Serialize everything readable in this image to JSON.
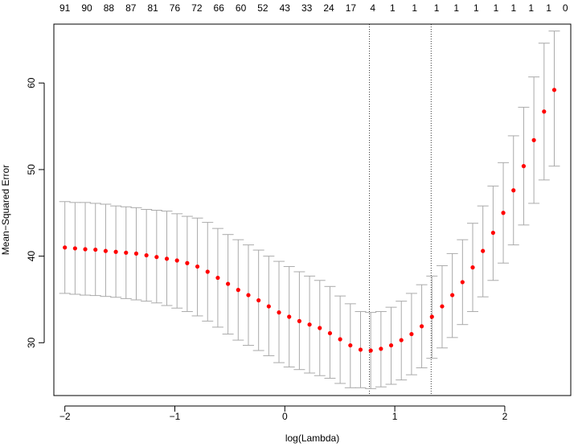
{
  "chart_data": {
    "type": "scatter",
    "title": "",
    "xlabel": "log(Lambda)",
    "ylabel": "Mean−Squared Error",
    "xlim": [
      -2.1,
      2.6
    ],
    "ylim": [
      23.9,
      66.8
    ],
    "x_ticks": [
      -2,
      -1,
      0,
      1,
      2
    ],
    "x_tick_labels": [
      "−2",
      "−1",
      "0",
      "1",
      "2"
    ],
    "y_ticks": [
      30,
      40,
      50,
      60
    ],
    "y_tick_labels": [
      "30",
      "40",
      "50",
      "60"
    ],
    "top_axis_labels": [
      "91",
      "90",
      "88",
      "87",
      "81",
      "76",
      "72",
      "66",
      "60",
      "52",
      "43",
      "33",
      "24",
      "17",
      "4",
      "1",
      "1",
      "1",
      "1",
      "1",
      "1",
      "1",
      "1",
      "1",
      "0"
    ],
    "top_axis_label_positions": [
      -2.0,
      -1.8,
      -1.6,
      -1.4,
      -1.2,
      -1.0,
      -0.8,
      -0.6,
      -0.4,
      -0.2,
      0.0,
      0.2,
      0.4,
      0.6,
      0.8,
      0.98,
      1.18,
      1.38,
      1.56,
      1.74,
      1.92,
      2.08,
      2.24,
      2.4,
      2.55
    ],
    "vlines": [
      0.77,
      1.33
    ],
    "grid": false,
    "point_color": "#ff0000",
    "errorbar_color": "#aaaaaa",
    "points": [
      {
        "x": -2.0,
        "y": 41.0,
        "lo": 35.7,
        "hi": 46.3
      },
      {
        "x": -1.9,
        "y": 40.9,
        "lo": 35.6,
        "hi": 46.2
      },
      {
        "x": -1.8,
        "y": 40.8,
        "lo": 35.5,
        "hi": 46.2
      },
      {
        "x": -1.71,
        "y": 40.75,
        "lo": 35.45,
        "hi": 46.1
      },
      {
        "x": -1.61,
        "y": 40.6,
        "lo": 35.35,
        "hi": 46.0
      },
      {
        "x": -1.51,
        "y": 40.5,
        "lo": 35.25,
        "hi": 45.8
      },
      {
        "x": -1.41,
        "y": 40.4,
        "lo": 35.1,
        "hi": 45.7
      },
      {
        "x": -1.31,
        "y": 40.3,
        "lo": 34.95,
        "hi": 45.6
      },
      {
        "x": -1.21,
        "y": 40.1,
        "lo": 34.8,
        "hi": 45.4
      },
      {
        "x": -1.11,
        "y": 39.9,
        "lo": 34.6,
        "hi": 45.3
      },
      {
        "x": -1.01,
        "y": 39.7,
        "lo": 34.3,
        "hi": 45.2
      },
      {
        "x": -0.91,
        "y": 39.5,
        "lo": 34.0,
        "hi": 44.9
      },
      {
        "x": -0.81,
        "y": 39.2,
        "lo": 33.6,
        "hi": 44.6
      },
      {
        "x": -0.71,
        "y": 38.8,
        "lo": 33.1,
        "hi": 44.4
      },
      {
        "x": -0.61,
        "y": 38.2,
        "lo": 32.5,
        "hi": 43.9
      },
      {
        "x": -0.51,
        "y": 37.5,
        "lo": 31.8,
        "hi": 43.2
      },
      {
        "x": -0.41,
        "y": 36.8,
        "lo": 31.0,
        "hi": 42.5
      },
      {
        "x": -0.31,
        "y": 36.1,
        "lo": 30.3,
        "hi": 41.9
      },
      {
        "x": -0.21,
        "y": 35.5,
        "lo": 29.7,
        "hi": 41.3
      },
      {
        "x": -0.11,
        "y": 34.9,
        "lo": 29.1,
        "hi": 40.7
      },
      {
        "x": -0.01,
        "y": 34.2,
        "lo": 28.5,
        "hi": 40.0
      },
      {
        "x": 0.09,
        "y": 33.5,
        "lo": 27.7,
        "hi": 39.4
      },
      {
        "x": 0.19,
        "y": 33.0,
        "lo": 27.2,
        "hi": 38.8
      },
      {
        "x": 0.29,
        "y": 32.5,
        "lo": 26.9,
        "hi": 38.2
      },
      {
        "x": 0.39,
        "y": 32.1,
        "lo": 26.5,
        "hi": 37.7
      },
      {
        "x": 0.49,
        "y": 31.7,
        "lo": 26.2,
        "hi": 37.2
      },
      {
        "x": 0.59,
        "y": 31.1,
        "lo": 25.9,
        "hi": 36.5
      },
      {
        "x": 0.69,
        "y": 30.4,
        "lo": 25.3,
        "hi": 35.4
      },
      {
        "x": 0.79,
        "y": 29.7,
        "lo": 24.8,
        "hi": 34.5
      },
      {
        "x": 0.89,
        "y": 29.2,
        "lo": 24.8,
        "hi": 33.6
      },
      {
        "x": 0.99,
        "y": 29.1,
        "lo": 24.7,
        "hi": 33.5
      },
      {
        "x": 1.09,
        "y": 29.3,
        "lo": 24.9,
        "hi": 33.6
      },
      {
        "x": 1.19,
        "y": 29.7,
        "lo": 25.2,
        "hi": 34.1
      },
      {
        "x": 1.29,
        "y": 30.3,
        "lo": 25.7,
        "hi": 34.8
      },
      {
        "x": 1.39,
        "y": 31.0,
        "lo": 26.3,
        "hi": 35.7
      },
      {
        "x": 1.49,
        "y": 31.9,
        "lo": 27.1,
        "hi": 36.7
      },
      {
        "x": 1.59,
        "y": 33.0,
        "lo": 28.2,
        "hi": 37.7
      },
      {
        "x": 1.69,
        "y": 34.2,
        "lo": 29.4,
        "hi": 38.9
      },
      {
        "x": 1.79,
        "y": 35.5,
        "lo": 30.6,
        "hi": 40.3
      },
      {
        "x": 1.89,
        "y": 37.0,
        "lo": 32.1,
        "hi": 41.9
      },
      {
        "x": 1.99,
        "y": 38.7,
        "lo": 33.6,
        "hi": 43.8
      },
      {
        "x": 2.09,
        "y": 40.6,
        "lo": 35.3,
        "hi": 45.8
      },
      {
        "x": 2.19,
        "y": 42.7,
        "lo": 37.2,
        "hi": 48.1
      },
      {
        "x": 2.29,
        "y": 45.0,
        "lo": 39.2,
        "hi": 50.8
      },
      {
        "x": 2.39,
        "y": 47.6,
        "lo": 41.3,
        "hi": 53.9
      },
      {
        "x": 2.49,
        "y": 50.4,
        "lo": 43.6,
        "hi": 57.2
      },
      {
        "x": 2.59,
        "y": 53.4,
        "lo": 46.1,
        "hi": 60.7
      },
      {
        "x": 2.69,
        "y": 56.7,
        "lo": 48.8,
        "hi": 64.6
      },
      {
        "x": 2.79,
        "y": 59.2,
        "lo": 50.4,
        "hi": 66.0
      }
    ]
  }
}
